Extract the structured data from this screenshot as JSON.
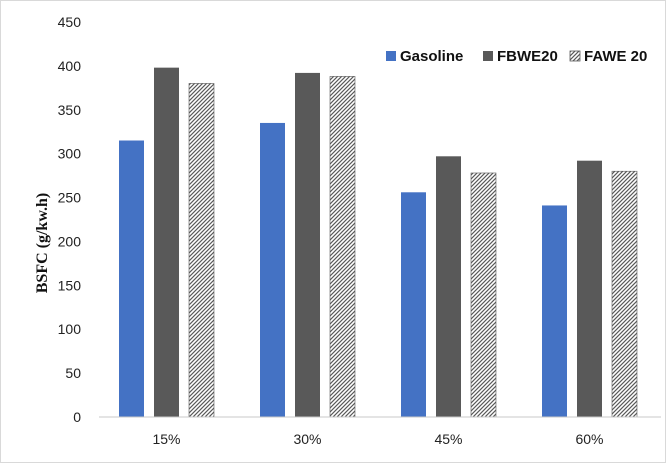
{
  "chart_data": {
    "type": "bar",
    "title": "",
    "xlabel": "",
    "ylabel": "BSFC  (g/kw.h)",
    "ylim": [
      0,
      450
    ],
    "yticks": [
      0,
      50,
      100,
      150,
      200,
      250,
      300,
      350,
      400,
      450
    ],
    "categories": [
      "15%",
      "30%",
      "45%",
      "60%"
    ],
    "grid": false,
    "legend_position": "top-right",
    "series": [
      {
        "name": "Gasoline",
        "values": [
          315,
          335,
          256,
          241
        ],
        "color": "#4472C4",
        "fill": "solid"
      },
      {
        "name": "FBWE20",
        "values": [
          398,
          392,
          297,
          292
        ],
        "color": "#595959",
        "fill": "solid"
      },
      {
        "name": "FAWE 20",
        "values": [
          380,
          388,
          278,
          280
        ],
        "color": "#595959",
        "fill": "hatched"
      }
    ]
  }
}
